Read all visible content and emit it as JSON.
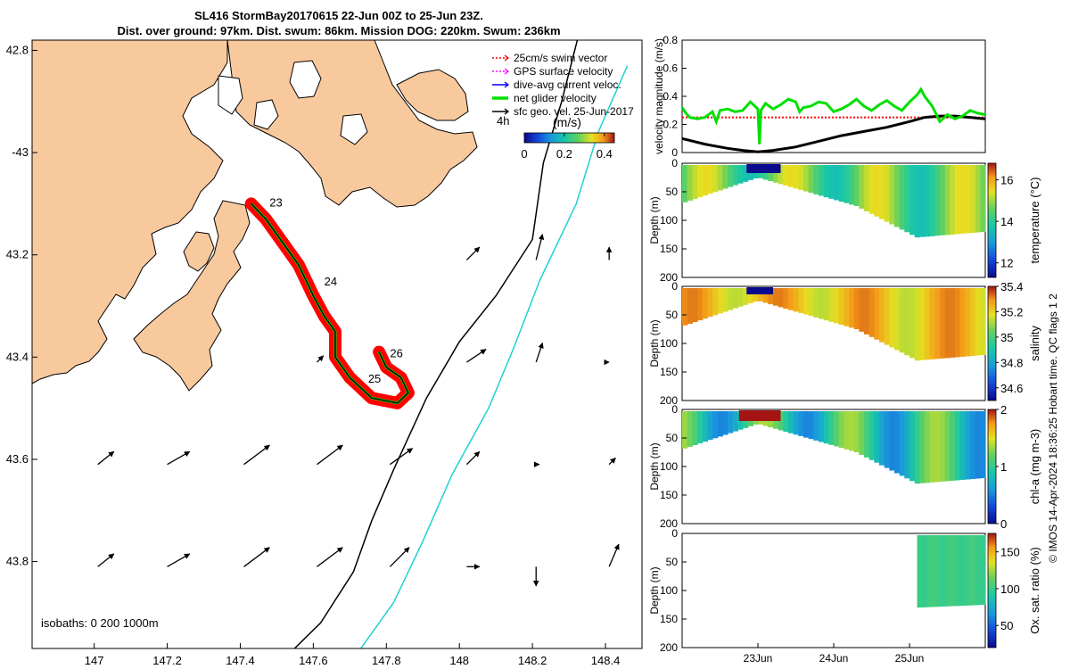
{
  "title_line1": "SL416 StormBay20170615 22-Jun 00Z to 25-Jun 23Z.",
  "title_line2": "Dist. over ground: 97km. Dist. swum: 86km. Mission DOG: 220km. Swum: 236km",
  "credit": "© IMOS 14-Apr-2024 18:36:25 Hobart time. QC flags 1  2",
  "colors": {
    "land": "#f9c99e",
    "track": "#ff0000",
    "net": "#00e000",
    "slope": "#20d0d0",
    "black": "#000000"
  },
  "chart_data": [
    {
      "type": "map",
      "name": "glider-track-map",
      "xlim": [
        146.83,
        148.5
      ],
      "ylim": [
        -43.97,
        -42.78
      ],
      "x_ticks": [
        {
          "v": 147,
          "label": "147"
        },
        {
          "v": 147.2,
          "label": "147.2"
        },
        {
          "v": 147.4,
          "label": "147.4"
        },
        {
          "v": 147.6,
          "label": "147.6"
        },
        {
          "v": 147.8,
          "label": "147.8"
        },
        {
          "v": 148,
          "label": "148"
        },
        {
          "v": 148.2,
          "label": "148.2"
        },
        {
          "v": 148.4,
          "label": "148.4"
        }
      ],
      "y_ticks": [
        {
          "v": -42.8,
          "label": "42.8"
        },
        {
          "v": -43,
          "label": "-43"
        },
        {
          "v": -43.2,
          "label": "43.2"
        },
        {
          "v": -43.4,
          "label": "43.4"
        },
        {
          "v": -43.6,
          "label": "43.6"
        },
        {
          "v": -43.8,
          "label": "43.8"
        }
      ],
      "legend": [
        {
          "label": "25cm/s swim vector",
          "color": "#ff0000",
          "style": "dotted"
        },
        {
          "label": "GPS surface velocity",
          "color": "#ff00ff",
          "style": "dotted"
        },
        {
          "label": "dive-avg current veloc.",
          "color": "#0000ff",
          "style": "solid"
        },
        {
          "label": "net glider velocity",
          "color": "#00e000",
          "style": "thick"
        },
        {
          "label": "sfc geo. vel. 25-Jun-2017",
          "color": "#000000",
          "style": "solid"
        }
      ],
      "colorbar": {
        "label": "(m/s)",
        "prefix": "4h",
        "ticks": [
          "0",
          "0.2",
          "0.4"
        ],
        "range": [
          0,
          0.45
        ]
      },
      "isobaths_label": "isobaths: 0   200  1000m",
      "track": [
        [
          147.43,
          -43.1
        ],
        [
          147.47,
          -43.13
        ],
        [
          147.52,
          -43.18
        ],
        [
          147.56,
          -43.22
        ],
        [
          147.6,
          -43.28
        ],
        [
          147.63,
          -43.32
        ],
        [
          147.66,
          -43.35
        ],
        [
          147.66,
          -43.4
        ],
        [
          147.7,
          -43.44
        ],
        [
          147.76,
          -43.48
        ],
        [
          147.83,
          -43.49
        ],
        [
          147.86,
          -43.47
        ],
        [
          147.84,
          -43.44
        ],
        [
          147.8,
          -43.42
        ],
        [
          147.78,
          -43.39
        ]
      ],
      "day_labels": [
        {
          "label": "23",
          "lon": 147.48,
          "lat": -43.105
        },
        {
          "label": "24",
          "lon": 147.63,
          "lat": -43.26
        },
        {
          "label": "26",
          "lon": 147.81,
          "lat": -43.4
        },
        {
          "label": "25",
          "lon": 147.75,
          "lat": -43.45
        }
      ],
      "isobath_200": [
        [
          147.52,
          -43.99
        ],
        [
          147.62,
          -43.92
        ],
        [
          147.71,
          -43.82
        ],
        [
          147.76,
          -43.72
        ],
        [
          147.82,
          -43.62
        ],
        [
          147.91,
          -43.48
        ],
        [
          148.0,
          -43.37
        ],
        [
          148.1,
          -43.28
        ],
        [
          148.2,
          -43.17
        ],
        [
          148.23,
          -43.02
        ],
        [
          148.28,
          -42.9
        ],
        [
          148.33,
          -42.76
        ]
      ],
      "isobath_1000": [
        [
          147.71,
          -43.99
        ],
        [
          147.82,
          -43.88
        ],
        [
          147.9,
          -43.76
        ],
        [
          147.98,
          -43.63
        ],
        [
          148.08,
          -43.5
        ],
        [
          148.15,
          -43.38
        ],
        [
          148.22,
          -43.25
        ],
        [
          148.32,
          -43.1
        ],
        [
          148.38,
          -42.96
        ],
        [
          148.46,
          -42.83
        ]
      ],
      "vectors": [
        {
          "lon": 147.01,
          "lat": -43.61,
          "u": 0.025,
          "v": 0.02
        },
        {
          "lon": 147.2,
          "lat": -43.61,
          "u": 0.035,
          "v": 0.02
        },
        {
          "lon": 147.41,
          "lat": -43.61,
          "u": 0.04,
          "v": 0.03
        },
        {
          "lon": 147.61,
          "lat": -43.61,
          "u": 0.04,
          "v": 0.03
        },
        {
          "lon": 147.81,
          "lat": -43.61,
          "u": 0.035,
          "v": 0.025
        },
        {
          "lon": 148.02,
          "lat": -43.61,
          "u": 0.02,
          "v": 0.02
        },
        {
          "lon": 148.21,
          "lat": -43.61,
          "u": 0.005,
          "v": 0.0
        },
        {
          "lon": 148.41,
          "lat": -43.61,
          "u": 0.01,
          "v": 0.01
        },
        {
          "lon": 147.01,
          "lat": -43.81,
          "u": 0.025,
          "v": 0.02
        },
        {
          "lon": 147.2,
          "lat": -43.81,
          "u": 0.035,
          "v": 0.02
        },
        {
          "lon": 147.41,
          "lat": -43.81,
          "u": 0.04,
          "v": 0.03
        },
        {
          "lon": 147.61,
          "lat": -43.81,
          "u": 0.04,
          "v": 0.03
        },
        {
          "lon": 147.81,
          "lat": -43.81,
          "u": 0.03,
          "v": 0.03
        },
        {
          "lon": 148.02,
          "lat": -43.81,
          "u": 0.02,
          "v": 0.0
        },
        {
          "lon": 148.21,
          "lat": -43.81,
          "u": 0.0,
          "v": -0.03
        },
        {
          "lon": 148.41,
          "lat": -43.81,
          "u": 0.015,
          "v": 0.035
        },
        {
          "lon": 148.02,
          "lat": -43.21,
          "u": 0.02,
          "v": 0.02
        },
        {
          "lon": 148.21,
          "lat": -43.21,
          "u": 0.01,
          "v": 0.04
        },
        {
          "lon": 148.41,
          "lat": -43.21,
          "u": 0.0,
          "v": 0.02
        },
        {
          "lon": 148.02,
          "lat": -43.41,
          "u": 0.03,
          "v": 0.02
        },
        {
          "lon": 148.21,
          "lat": -43.41,
          "u": 0.01,
          "v": 0.03
        },
        {
          "lon": 148.41,
          "lat": -43.41,
          "u": 0.0,
          "v": 0.0
        },
        {
          "lon": 147.61,
          "lat": -43.41,
          "u": 0.01,
          "v": 0.01
        }
      ]
    },
    {
      "type": "line",
      "name": "velocity-magnitude-panel",
      "ylabel": "velocity magnitude (m/s)",
      "ylim": [
        0,
        0.8
      ],
      "xlim": [
        22,
        26
      ],
      "y_ticks": [
        "0",
        "0.2",
        "0.4",
        "0.6",
        "0.8"
      ],
      "series": [
        {
          "name": "swim vector 25cm/s",
          "color": "#ff0000",
          "style": "dotted",
          "x": [
            22,
            26
          ],
          "values": [
            0.25,
            0.25
          ]
        },
        {
          "name": "net glider velocity",
          "color": "#00e000",
          "x": [
            22.0,
            22.05,
            22.1,
            22.2,
            22.3,
            22.4,
            22.45,
            22.5,
            22.6,
            22.7,
            22.8,
            22.9,
            23.0,
            23.02,
            23.04,
            23.1,
            23.2,
            23.3,
            23.4,
            23.5,
            23.55,
            23.6,
            23.7,
            23.8,
            23.9,
            24.0,
            24.1,
            24.2,
            24.3,
            24.4,
            24.5,
            24.6,
            24.7,
            24.8,
            24.9,
            25.0,
            25.1,
            25.15,
            25.2,
            25.3,
            25.4,
            25.5,
            25.6,
            25.7,
            25.8,
            25.9,
            26.0
          ],
          "values": [
            0.32,
            0.28,
            0.25,
            0.24,
            0.25,
            0.29,
            0.22,
            0.3,
            0.31,
            0.29,
            0.3,
            0.36,
            0.31,
            0.06,
            0.3,
            0.35,
            0.31,
            0.34,
            0.38,
            0.36,
            0.29,
            0.32,
            0.33,
            0.36,
            0.35,
            0.29,
            0.31,
            0.34,
            0.38,
            0.33,
            0.3,
            0.34,
            0.37,
            0.33,
            0.3,
            0.36,
            0.41,
            0.45,
            0.4,
            0.33,
            0.22,
            0.27,
            0.24,
            0.26,
            0.3,
            0.28,
            0.27
          ]
        },
        {
          "name": "dive-avg current",
          "color": "#000000",
          "x": [
            22,
            22.3,
            22.6,
            22.8,
            23.0,
            23.2,
            23.5,
            23.8,
            24.1,
            24.4,
            24.7,
            25.0,
            25.2,
            25.4,
            25.6,
            25.8,
            26.0
          ],
          "values": [
            0.1,
            0.06,
            0.03,
            0.015,
            0.005,
            0.015,
            0.04,
            0.08,
            0.12,
            0.15,
            0.18,
            0.22,
            0.25,
            0.26,
            0.26,
            0.25,
            0.24
          ]
        }
      ]
    },
    {
      "type": "heatmap",
      "name": "temperature-section",
      "ylabel": "Depth (m)",
      "ylim": [
        0,
        200
      ],
      "y_ticks": [
        "0",
        "50",
        "100",
        "150",
        "200"
      ],
      "cbar_label": "temperature (°C)",
      "cbar_ticks": [
        "12",
        "14",
        "16"
      ],
      "crange": [
        11.3,
        16.8
      ],
      "value_range": [
        13.5,
        15.3
      ],
      "cmap": "parula",
      "bottom_depth": [
        [
          22,
          70
        ],
        [
          23,
          25
        ],
        [
          24.3,
          75
        ],
        [
          25.1,
          130
        ],
        [
          26,
          120
        ]
      ],
      "data_start": 22.0,
      "data_end": 26.0
    },
    {
      "type": "heatmap",
      "name": "salinity-section",
      "ylabel": "Depth (m)",
      "ylim": [
        0,
        200
      ],
      "y_ticks": [
        "0",
        "50",
        "100",
        "150",
        "200"
      ],
      "cbar_label": "salinity",
      "cbar_ticks": [
        "34.6",
        "34.8",
        "35",
        "35.2",
        "35.4"
      ],
      "crange": [
        34.5,
        35.4
      ],
      "value_range": [
        35.1,
        35.3
      ],
      "cmap": "parula",
      "bottom_depth": [
        [
          22,
          70
        ],
        [
          23,
          25
        ],
        [
          24.3,
          75
        ],
        [
          25.1,
          130
        ],
        [
          26,
          120
        ]
      ],
      "data_start": 22.0,
      "data_end": 26.0
    },
    {
      "type": "heatmap",
      "name": "chl-a-section",
      "ylabel": "Depth (m)",
      "ylim": [
        0,
        200
      ],
      "y_ticks": [
        "0",
        "50",
        "100",
        "150",
        "200"
      ],
      "cbar_label": "chl-a (mg m-3)",
      "cbar_ticks": [
        "0",
        "1",
        "2"
      ],
      "crange": [
        0,
        2
      ],
      "value_range": [
        0.5,
        1.3
      ],
      "cmap": "parula",
      "bottom_depth": [
        [
          22,
          70
        ],
        [
          23,
          25
        ],
        [
          24.3,
          75
        ],
        [
          25.1,
          130
        ],
        [
          26,
          120
        ]
      ],
      "data_start": 22.0,
      "data_end": 26.0
    },
    {
      "type": "heatmap",
      "name": "oxygen-section",
      "ylabel": "Depth (m)",
      "ylim": [
        0,
        200
      ],
      "y_ticks": [
        "0",
        "50",
        "100",
        "150",
        "200"
      ],
      "cbar_label": "Ox. sat. ratio (%)",
      "cbar_ticks": [
        "50",
        "100",
        "150"
      ],
      "crange": [
        20,
        175
      ],
      "value_range": [
        95,
        100
      ],
      "cmap": "parula",
      "bottom_depth": [
        [
          25.1,
          130
        ],
        [
          26,
          125
        ]
      ],
      "data_start": 25.1,
      "data_end": 26.0,
      "x_ticks": [
        {
          "v": 23,
          "label": "23Jun"
        },
        {
          "v": 24,
          "label": "24Jun"
        },
        {
          "v": 25,
          "label": "25Jun"
        }
      ]
    }
  ]
}
